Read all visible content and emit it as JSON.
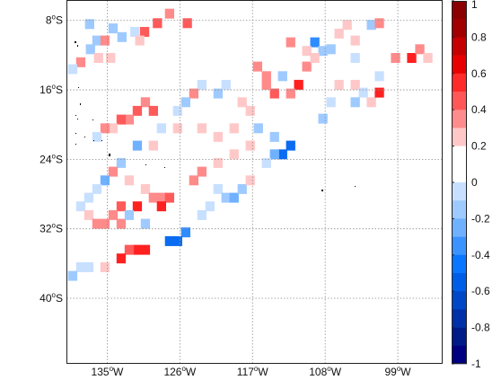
{
  "map": {
    "lat_ticks": [
      {
        "value": -8,
        "label": "8",
        "hemi": "S"
      },
      {
        "value": -16,
        "label": "16",
        "hemi": "S"
      },
      {
        "value": -24,
        "label": "24",
        "hemi": "S"
      },
      {
        "value": -32,
        "label": "32",
        "hemi": "S"
      },
      {
        "value": -40,
        "label": "40",
        "hemi": "S"
      }
    ],
    "lon_ticks": [
      {
        "value": -135,
        "label": "135",
        "hemi": "W"
      },
      {
        "value": -126,
        "label": "126",
        "hemi": "W"
      },
      {
        "value": -117,
        "label": "117",
        "hemi": "W"
      },
      {
        "value": -108,
        "label": "108",
        "hemi": "W"
      },
      {
        "value": -99,
        "label": "99",
        "hemi": "W"
      }
    ],
    "extent": {
      "lon_min": -140,
      "lon_max": -93.5,
      "lat_max": -5.7,
      "lat_min": -47.5
    },
    "grid": true
  },
  "colorbar": {
    "ticks": [
      "1",
      "0.8",
      "0.6",
      "0.4",
      "0.2",
      "0",
      "-0.2",
      "-0.4",
      "-0.6",
      "-0.8",
      "-1"
    ],
    "colors": [
      "#8b0000",
      "#a00000",
      "#c40000",
      "#e80000",
      "#ff2a2a",
      "#ff5757",
      "#ff8c8c",
      "#ffc8c8",
      "#ffffff",
      "#ffffff",
      "#c8e0ff",
      "#9ecaff",
      "#6fb1ff",
      "#3a93ff",
      "#0a75ff",
      "#005ee6",
      "#0047c8",
      "#0030a8",
      "#001a88",
      "#000080"
    ]
  },
  "chart_data": {
    "type": "heatmap",
    "title": "",
    "xlabel": "",
    "ylabel": "",
    "x_range_deg": [
      -140,
      -93.5
    ],
    "y_range_deg": [
      -47.5,
      -5.7
    ],
    "grid_cell_deg": 1.1,
    "colorbar_range": [
      -1,
      1
    ],
    "cells": [
      [
        -137.2,
        -8.4,
        -0.3
      ],
      [
        -134.3,
        -8.9,
        -0.3
      ],
      [
        -133.2,
        -9.9,
        -0.3
      ],
      [
        -131.6,
        -9.3,
        -0.2
      ],
      [
        -130.4,
        -9.3,
        0.4
      ],
      [
        -131.0,
        -10.3,
        0.2
      ],
      [
        -128.8,
        -8.3,
        0.4
      ],
      [
        -127.3,
        -7.2,
        0.3
      ],
      [
        -125.1,
        -8.3,
        0.4
      ],
      [
        -136.3,
        -10.3,
        -0.3
      ],
      [
        -135.3,
        -10.3,
        0.3
      ],
      [
        -137.1,
        -11.3,
        -0.3
      ],
      [
        -136.1,
        -12.3,
        0.2
      ],
      [
        -138.3,
        -12.8,
        0.3
      ],
      [
        -139.3,
        -13.6,
        -0.2
      ],
      [
        -134.6,
        -12.3,
        0.2
      ],
      [
        -112.3,
        -10.5,
        0.3
      ],
      [
        -109.3,
        -10.5,
        -0.6
      ],
      [
        -108.3,
        -11.5,
        -0.3
      ],
      [
        -110.3,
        -11.5,
        0.2
      ],
      [
        -106.3,
        -9.5,
        0.2
      ],
      [
        -105.3,
        -8.5,
        0.2
      ],
      [
        -104.3,
        -10.3,
        0.2
      ],
      [
        -102.3,
        -8.5,
        -0.3
      ],
      [
        -101.3,
        -8.3,
        0.3
      ],
      [
        -116.4,
        -13.3,
        0.3
      ],
      [
        -115.3,
        -14.4,
        0.3
      ],
      [
        -113.3,
        -14.4,
        -0.3
      ],
      [
        -111.3,
        -15.4,
        0.6
      ],
      [
        -112.3,
        -16.4,
        0.3
      ],
      [
        -114.3,
        -16.4,
        0.4
      ],
      [
        -115.3,
        -15.4,
        0.3
      ],
      [
        -110.3,
        -13.3,
        0.3
      ],
      [
        -109.3,
        -12.3,
        0.2
      ],
      [
        -107.3,
        -11.3,
        -0.3
      ],
      [
        -104.3,
        -12.3,
        -0.2
      ],
      [
        -101.3,
        -14.4,
        -0.2
      ],
      [
        -99.3,
        -12.3,
        0.3
      ],
      [
        -97.3,
        -12.3,
        0.5
      ],
      [
        -96.3,
        -11.3,
        0.3
      ],
      [
        -95.3,
        -12.3,
        0.2
      ],
      [
        -106.3,
        -15.4,
        0.2
      ],
      [
        -104.3,
        -15.4,
        0.2
      ],
      [
        -103.3,
        -16.3,
        -0.2
      ],
      [
        -102.3,
        -17.4,
        0.2
      ],
      [
        -101.3,
        -16.3,
        0.5
      ],
      [
        -104.3,
        -17.4,
        -0.3
      ],
      [
        -107.3,
        -17.4,
        -0.2
      ],
      [
        -108.3,
        -19.3,
        -0.3
      ],
      [
        -121.3,
        -16.4,
        -0.3
      ],
      [
        -120.3,
        -15.4,
        -0.2
      ],
      [
        -123.3,
        -15.4,
        -0.2
      ],
      [
        -124.3,
        -16.4,
        0.3
      ],
      [
        -125.3,
        -17.4,
        -0.3
      ],
      [
        -126.3,
        -18.4,
        -0.2
      ],
      [
        -118.3,
        -17.4,
        0.2
      ],
      [
        -117.3,
        -18.4,
        0.2
      ],
      [
        -130.3,
        -17.4,
        0.3
      ],
      [
        -129.3,
        -18.4,
        0.4
      ],
      [
        -131.3,
        -18.4,
        0.4
      ],
      [
        -132.3,
        -19.4,
        0.3
      ],
      [
        -133.3,
        -19.4,
        0.4
      ],
      [
        -134.3,
        -20.4,
        0.2
      ],
      [
        -135.3,
        -20.4,
        0.3
      ],
      [
        -136.3,
        -21.4,
        -0.2
      ],
      [
        -128.3,
        -20.4,
        -0.2
      ],
      [
        -126.3,
        -20.4,
        0.2
      ],
      [
        -123.3,
        -20.4,
        0.2
      ],
      [
        -121.3,
        -21.4,
        0.2
      ],
      [
        -119.3,
        -20.4,
        0.2
      ],
      [
        -116.3,
        -20.4,
        -0.3
      ],
      [
        -114.3,
        -21.4,
        -0.3
      ],
      [
        -112.3,
        -22.4,
        -0.7
      ],
      [
        -113.3,
        -23.4,
        -0.7
      ],
      [
        -114.3,
        -23.4,
        -0.4
      ],
      [
        -115.3,
        -24.4,
        -0.2
      ],
      [
        -117.3,
        -22.4,
        0.2
      ],
      [
        -119.3,
        -23.4,
        0.2
      ],
      [
        -121.3,
        -24.4,
        0.2
      ],
      [
        -123.3,
        -25.4,
        0.3
      ],
      [
        -124.3,
        -26.4,
        0.3
      ],
      [
        -131.3,
        -22.4,
        -0.4
      ],
      [
        -129.3,
        -22.4,
        0.2
      ],
      [
        -133.3,
        -24.4,
        -0.3
      ],
      [
        -134.3,
        -25.4,
        0.3
      ],
      [
        -135.3,
        -26.4,
        -0.4
      ],
      [
        -136.3,
        -27.4,
        -0.2
      ],
      [
        -137.3,
        -28.4,
        -0.2
      ],
      [
        -132.3,
        -26.4,
        0.2
      ],
      [
        -130.3,
        -27.4,
        0.2
      ],
      [
        -129.3,
        -28.4,
        0.3
      ],
      [
        -128.3,
        -28.4,
        0.3
      ],
      [
        -127.3,
        -28.4,
        0.4
      ],
      [
        -131.3,
        -29.4,
        0.6
      ],
      [
        -133.3,
        -29.4,
        0.4
      ],
      [
        -134.3,
        -30.4,
        0.3
      ],
      [
        -135.3,
        -31.4,
        0.3
      ],
      [
        -138.3,
        -29.4,
        -0.2
      ],
      [
        -137.3,
        -30.4,
        0.2
      ],
      [
        -136.3,
        -31.4,
        0.3
      ],
      [
        -133.3,
        -31.4,
        0.3
      ],
      [
        -132.3,
        -30.4,
        -0.3
      ],
      [
        -130.3,
        -31.4,
        -0.3
      ],
      [
        -128.3,
        -29.4,
        0.6
      ],
      [
        -121.3,
        -27.4,
        -0.2
      ],
      [
        -120.3,
        -28.4,
        -0.3
      ],
      [
        -119.3,
        -28.4,
        -0.4
      ],
      [
        -118.3,
        -27.4,
        -0.3
      ],
      [
        -117.3,
        -26.4,
        0.2
      ],
      [
        -122.3,
        -29.4,
        -0.2
      ],
      [
        -123.3,
        -30.4,
        -0.2
      ],
      [
        -125.3,
        -32.4,
        -0.6
      ],
      [
        -126.3,
        -33.4,
        -0.7
      ],
      [
        -127.3,
        -33.4,
        -0.7
      ],
      [
        -130.3,
        -34.4,
        0.6
      ],
      [
        -131.3,
        -34.4,
        0.5
      ],
      [
        -132.3,
        -34.4,
        0.4
      ],
      [
        -133.3,
        -35.4,
        0.5
      ],
      [
        -138.3,
        -36.4,
        -0.2
      ],
      [
        -137.3,
        -36.4,
        -0.2
      ],
      [
        -135.3,
        -36.4,
        0.2
      ],
      [
        -139.3,
        -37.4,
        -0.3
      ]
    ]
  }
}
